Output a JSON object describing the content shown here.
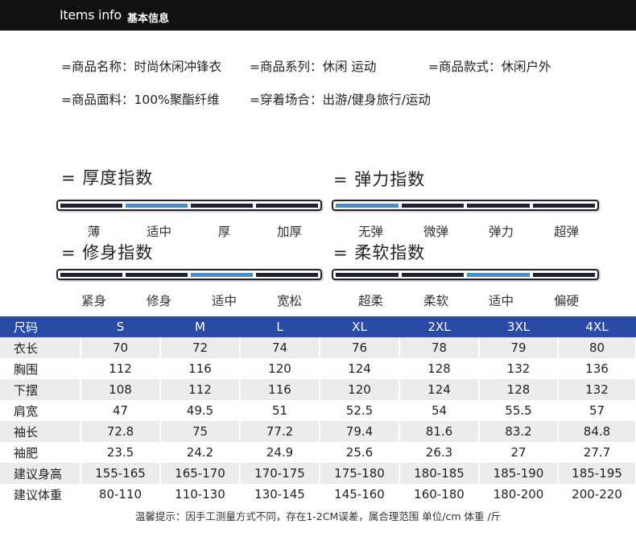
{
  "header": {
    "title_en": "Items info",
    "title_cn": "基本信息"
  },
  "info": {
    "name": "=商品名称：时尚休闲冲锋衣",
    "series": "=商品系列：休闲 运动",
    "style": "=商品款式：休闲户外",
    "material": "=商品面料：100%聚酯纤维",
    "occasion": "=穿着场合：出游/健身旅行/运动"
  },
  "indicators": [
    {
      "title": "= 厚度指数",
      "labels": [
        "薄",
        "适中",
        "厚",
        "加厚"
      ],
      "active": 1
    },
    {
      "title": "= 弹力指数",
      "labels": [
        "无弹",
        "微弹",
        "弹力",
        "超弹"
      ],
      "active": 0
    },
    {
      "title": "= 修身指数",
      "labels": [
        "紧身",
        "修身",
        "适中",
        "宽松"
      ],
      "active": 2
    },
    {
      "title": "= 柔软指数",
      "labels": [
        "超柔",
        "柔软",
        "适中",
        "偏硬"
      ],
      "active": 2
    }
  ],
  "accent_color": "#3d8fd6",
  "header_row_color": "#2a4ba3",
  "size_table": {
    "headers": [
      "尺码",
      "S",
      "M",
      "L",
      "XL",
      "2XL",
      "3XL",
      "4XL"
    ],
    "rows": [
      [
        "衣长",
        "70",
        "72",
        "74",
        "76",
        "78",
        "79",
        "80"
      ],
      [
        "胸围",
        "112",
        "116",
        "120",
        "124",
        "128",
        "132",
        "136"
      ],
      [
        "下摆",
        "108",
        "112",
        "116",
        "120",
        "124",
        "128",
        "132"
      ],
      [
        "肩宽",
        "47",
        "49.5",
        "51",
        "52.5",
        "54",
        "55.5",
        "57"
      ],
      [
        "袖长",
        "72.8",
        "75",
        "77.2",
        "79.4",
        "81.6",
        "83.2",
        "84.8"
      ],
      [
        "袖肥",
        "23.5",
        "24.2",
        "24.9",
        "25.6",
        "26.3",
        "27",
        "27.7"
      ],
      [
        "建议身高",
        "155-165",
        "165-170",
        "170-175",
        "175-180",
        "180-185",
        "185-190",
        "185-195"
      ],
      [
        "建议体重",
        "80-110",
        "110-130",
        "130-145",
        "145-160",
        "160-180",
        "180-200",
        "200-220"
      ]
    ]
  },
  "footer": {
    "note": "温馨提示：因手工测量方式不同，存在1-2CM误差，属合理范围 单位/cm 体重 /斤"
  }
}
